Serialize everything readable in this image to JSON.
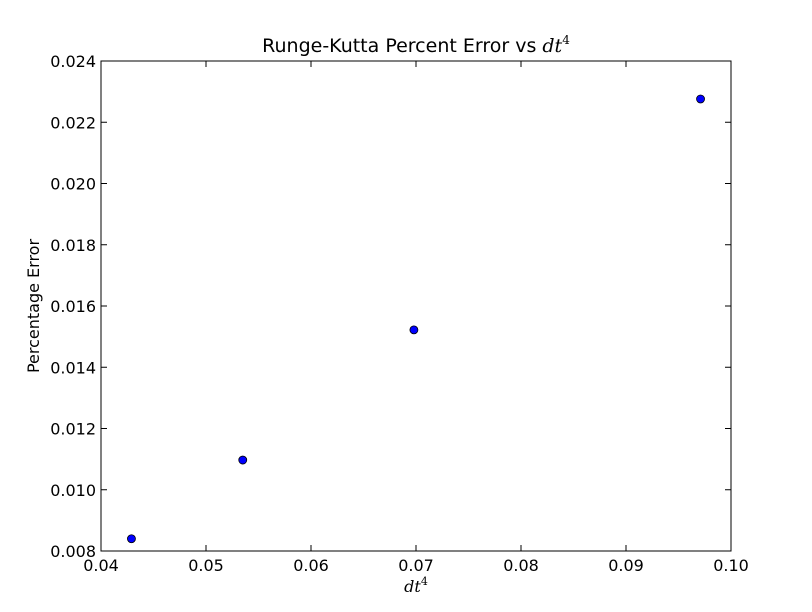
{
  "chart_data": {
    "type": "scatter",
    "title": {
      "text": "Runge-Kutta Percent Error vs ",
      "math_base": "dt",
      "math_sup": "4"
    },
    "xlabel": {
      "math_base": "dt",
      "math_sup": "4"
    },
    "ylabel": "Percentage Error",
    "xlim": [
      0.04,
      0.1
    ],
    "ylim": [
      0.008,
      0.024
    ],
    "x_ticks": [
      "0.04",
      "0.05",
      "0.06",
      "0.07",
      "0.08",
      "0.09",
      "0.10"
    ],
    "y_ticks": [
      "0.008",
      "0.010",
      "0.012",
      "0.014",
      "0.016",
      "0.018",
      "0.020",
      "0.022",
      "0.024"
    ],
    "grid": false,
    "marker_color": "#0000ff",
    "points": [
      {
        "x": 0.0429,
        "y": 0.0084
      },
      {
        "x": 0.0535,
        "y": 0.01097
      },
      {
        "x": 0.0698,
        "y": 0.01522
      },
      {
        "x": 0.0971,
        "y": 0.02276
      }
    ]
  }
}
